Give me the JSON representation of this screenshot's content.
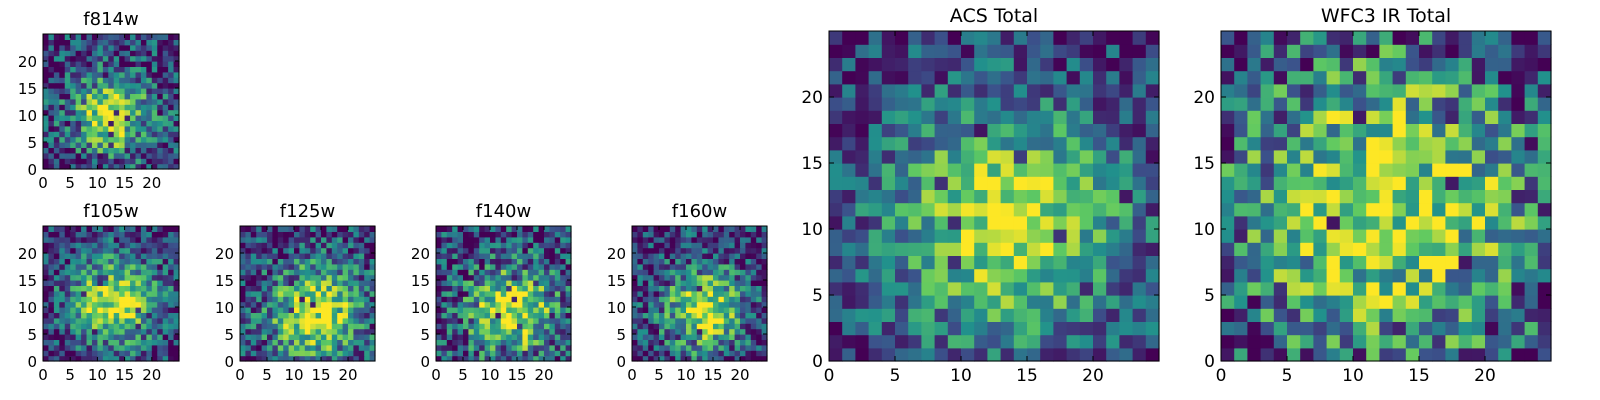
{
  "chart_data": [
    {
      "type": "heatmap",
      "title": "f814w",
      "xlim": [
        0,
        25
      ],
      "ylim": [
        0,
        25
      ],
      "xticks": [
        0,
        5,
        10,
        15,
        20
      ],
      "yticks": [
        0,
        5,
        10,
        15,
        20
      ],
      "grid_size": 25,
      "center": [
        12.5,
        10.0
      ],
      "sigma": 5.0,
      "noise": 0.38,
      "seed": 11
    },
    {
      "type": "heatmap",
      "title": "f105w",
      "xlim": [
        0,
        25
      ],
      "ylim": [
        0,
        25
      ],
      "xticks": [
        0,
        5,
        10,
        15,
        20
      ],
      "yticks": [
        0,
        5,
        10,
        15,
        20
      ],
      "grid_size": 25,
      "center": [
        13.0,
        11.0
      ],
      "sigma": 6.0,
      "noise": 0.32,
      "seed": 23
    },
    {
      "type": "heatmap",
      "title": "f125w",
      "xlim": [
        0,
        25
      ],
      "ylim": [
        0,
        25
      ],
      "xticks": [
        0,
        5,
        10,
        15,
        20
      ],
      "yticks": [
        0,
        5,
        10,
        15,
        20
      ],
      "grid_size": 25,
      "center": [
        14.0,
        9.0
      ],
      "sigma": 6.5,
      "noise": 0.36,
      "seed": 37
    },
    {
      "type": "heatmap",
      "title": "f140w",
      "xlim": [
        0,
        25
      ],
      "ylim": [
        0,
        25
      ],
      "xticks": [
        0,
        5,
        10,
        15,
        20
      ],
      "yticks": [
        0,
        5,
        10,
        15,
        20
      ],
      "grid_size": 25,
      "center": [
        14.0,
        9.0
      ],
      "sigma": 6.0,
      "noise": 0.4,
      "seed": 41
    },
    {
      "type": "heatmap",
      "title": "f160w",
      "xlim": [
        0,
        25
      ],
      "ylim": [
        0,
        25
      ],
      "xticks": [
        0,
        5,
        10,
        15,
        20
      ],
      "yticks": [
        0,
        5,
        10,
        15,
        20
      ],
      "grid_size": 25,
      "center": [
        13.5,
        9.5
      ],
      "sigma": 5.5,
      "noise": 0.36,
      "seed": 53
    },
    {
      "type": "heatmap",
      "title": "ACS Total",
      "xlim": [
        0,
        25
      ],
      "ylim": [
        0,
        25
      ],
      "xticks": [
        0,
        5,
        10,
        15,
        20
      ],
      "yticks": [
        0,
        5,
        10,
        15,
        20
      ],
      "grid_size": 25,
      "center": [
        13.5,
        10.5
      ],
      "sigma": 6.5,
      "noise": 0.28,
      "seed": 67
    },
    {
      "type": "heatmap",
      "title": "WFC3 IR Total",
      "xlim": [
        0,
        25
      ],
      "ylim": [
        0,
        25
      ],
      "xticks": [
        0,
        5,
        10,
        15,
        20
      ],
      "yticks": [
        0,
        5,
        10,
        15,
        20
      ],
      "grid_size": 25,
      "center": [
        12.5,
        11.5
      ],
      "sigma": 8.0,
      "noise": 0.42,
      "seed": 79
    }
  ],
  "colormap": [
    "#440154",
    "#3b528b",
    "#21918c",
    "#5ec962",
    "#fde725"
  ]
}
